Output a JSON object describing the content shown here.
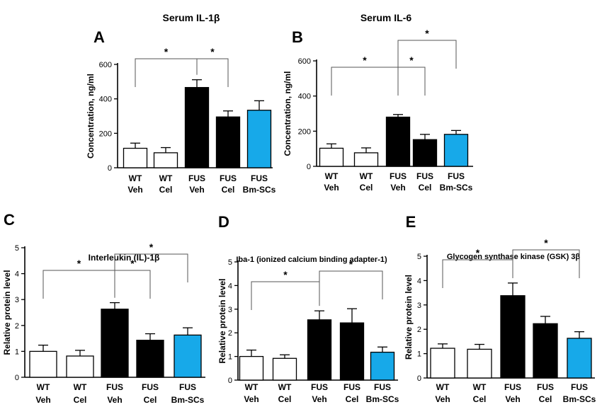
{
  "colors": {
    "wt": "#ffffff",
    "fus": "#000000",
    "bmsc": "#17a9e9",
    "axis": "#000000",
    "bracket": "#555555"
  },
  "chart_data": [
    {
      "type": "bar",
      "panel": "A",
      "title": "Serum IL-1β",
      "ylabel": "Concentration, ng/ml",
      "ylim": [
        0,
        600
      ],
      "yticks": [
        "0",
        "200",
        "400",
        "600"
      ],
      "categories": [
        [
          "WT",
          "Veh"
        ],
        [
          "WT",
          "Cel"
        ],
        [
          "FUS",
          "Veh"
        ],
        [
          "FUS",
          "Cel"
        ],
        [
          "FUS",
          "Bm-SCs"
        ]
      ],
      "values": [
        113,
        87,
        466,
        295,
        334
      ],
      "errors": [
        30,
        30,
        45,
        35,
        55
      ],
      "significance": [
        {
          "from": 0,
          "to": 2,
          "label": "*"
        },
        {
          "from": 2,
          "to": 3,
          "label": "*"
        }
      ]
    },
    {
      "type": "bar",
      "panel": "B",
      "title": "Serum IL-6",
      "ylabel": "Concentration, ng/ml",
      "ylim": [
        0,
        600
      ],
      "yticks": [
        "0",
        "200",
        "400",
        "600"
      ],
      "categories": [
        [
          "WT",
          "Veh"
        ],
        [
          "WT",
          "Cel"
        ],
        [
          "FUS",
          "Veh"
        ],
        [
          "FUS",
          "Cel"
        ],
        [
          "FUS",
          "Bm-SCs"
        ]
      ],
      "values": [
        103,
        77,
        280,
        152,
        182
      ],
      "errors": [
        25,
        28,
        15,
        30,
        22
      ],
      "significance": [
        {
          "from": 0,
          "to": 2,
          "label": "*"
        },
        {
          "from": 2,
          "to": 3,
          "label": "*"
        },
        {
          "from": 2,
          "to": 4,
          "label": "*"
        }
      ]
    },
    {
      "type": "bar",
      "panel": "C",
      "title": "Interleukin (IL)-1β",
      "ylabel": "Relative protein level",
      "ylim": [
        0,
        5
      ],
      "yticks": [
        "0",
        "1",
        "2",
        "3",
        "4",
        "5"
      ],
      "categories": [
        [
          "WT",
          "Veh"
        ],
        [
          "WT",
          "Cel"
        ],
        [
          "FUS",
          "Veh"
        ],
        [
          "FUS",
          "Cel"
        ],
        [
          "FUS",
          "Bm-SCs"
        ]
      ],
      "values": [
        1.0,
        0.82,
        2.63,
        1.43,
        1.63
      ],
      "errors": [
        0.24,
        0.22,
        0.25,
        0.25,
        0.28
      ],
      "significance": [
        {
          "from": 0,
          "to": 2,
          "label": "*"
        },
        {
          "from": 2,
          "to": 3,
          "label": "*"
        },
        {
          "from": 2,
          "to": 4,
          "label": "*"
        }
      ]
    },
    {
      "type": "bar",
      "panel": "D",
      "title": "Iba-1 (ionized calcium binding adapter-1)",
      "ylabel": "Relative protein level",
      "ylim": [
        0,
        5
      ],
      "yticks": [
        "0",
        "1",
        "2",
        "3",
        "4",
        "5"
      ],
      "categories": [
        [
          "WT",
          "Veh"
        ],
        [
          "WT",
          "Cel"
        ],
        [
          "FUS",
          "Veh"
        ],
        [
          "FUS",
          "Cel"
        ],
        [
          "FUS",
          "Bm-SCs"
        ]
      ],
      "values": [
        1.0,
        0.92,
        2.55,
        2.42,
        1.18
      ],
      "errors": [
        0.27,
        0.15,
        0.38,
        0.6,
        0.22
      ],
      "significance": [
        {
          "from": 0,
          "to": 2,
          "label": "*"
        },
        {
          "from": 2,
          "to": 4,
          "label": "*"
        }
      ]
    },
    {
      "type": "bar",
      "panel": "E",
      "title": "Glycogen synthase kinase (GSK) 3β",
      "ylabel": "Relative protein level",
      "ylim": [
        0,
        5
      ],
      "yticks": [
        "0",
        "1",
        "2",
        "3",
        "4",
        "5"
      ],
      "categories": [
        [
          "WT",
          "Veh"
        ],
        [
          "WT",
          "Cel"
        ],
        [
          "FUS",
          "Veh"
        ],
        [
          "FUS",
          "Cel"
        ],
        [
          "FUS",
          "Bm-SCs"
        ]
      ],
      "values": [
        1.22,
        1.18,
        3.38,
        2.23,
        1.63
      ],
      "errors": [
        0.18,
        0.2,
        0.52,
        0.3,
        0.27
      ],
      "significance": [
        {
          "from": 0,
          "to": 2,
          "label": "*"
        },
        {
          "from": 2,
          "to": 4,
          "label": "*"
        }
      ]
    }
  ]
}
